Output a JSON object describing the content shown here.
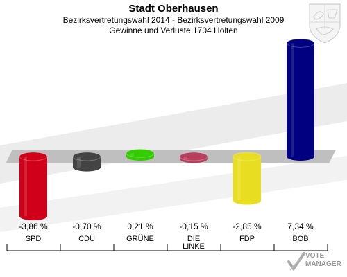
{
  "header": {
    "title": "Stadt Oberhausen",
    "subtitle1": "Bezirksvertretungswahl 2014 - Bezirksvertretungswahl 2009",
    "subtitle2": "Gewinne und Verluste 1704 Holten"
  },
  "watermark": {
    "line1": "VOTE",
    "line2": "MANAGER"
  },
  "colors": {
    "SPD": "#d0001a",
    "CDU": "#444444",
    "GRÜNE": "#33cc00",
    "DIE LINKE": "#b8405e",
    "FDP": "#e8dd20",
    "BOB": "#000080",
    "band": "#bfbfbf",
    "background_stripes": "#ececec"
  },
  "chart_data": {
    "type": "bar",
    "categories": [
      "SPD",
      "CDU",
      "GRÜNE",
      "DIE LINKE",
      "FDP",
      "BOB"
    ],
    "values": [
      -3.86,
      -0.7,
      0.21,
      -0.15,
      -2.85,
      7.34
    ],
    "value_labels": [
      "-3,86 %",
      "-0,70 %",
      "0,21 %",
      "-0,15 %",
      "-2,85 %",
      "7,34 %"
    ],
    "category_labels": [
      [
        "SPD"
      ],
      [
        "CDU"
      ],
      [
        "GRÜNE"
      ],
      [
        "DIE",
        "LINKE"
      ],
      [
        "FDP"
      ],
      [
        "BOB"
      ]
    ],
    "title": "Stadt Oberhausen",
    "xlabel": "",
    "ylabel": "",
    "grid": false,
    "legend": "none"
  }
}
